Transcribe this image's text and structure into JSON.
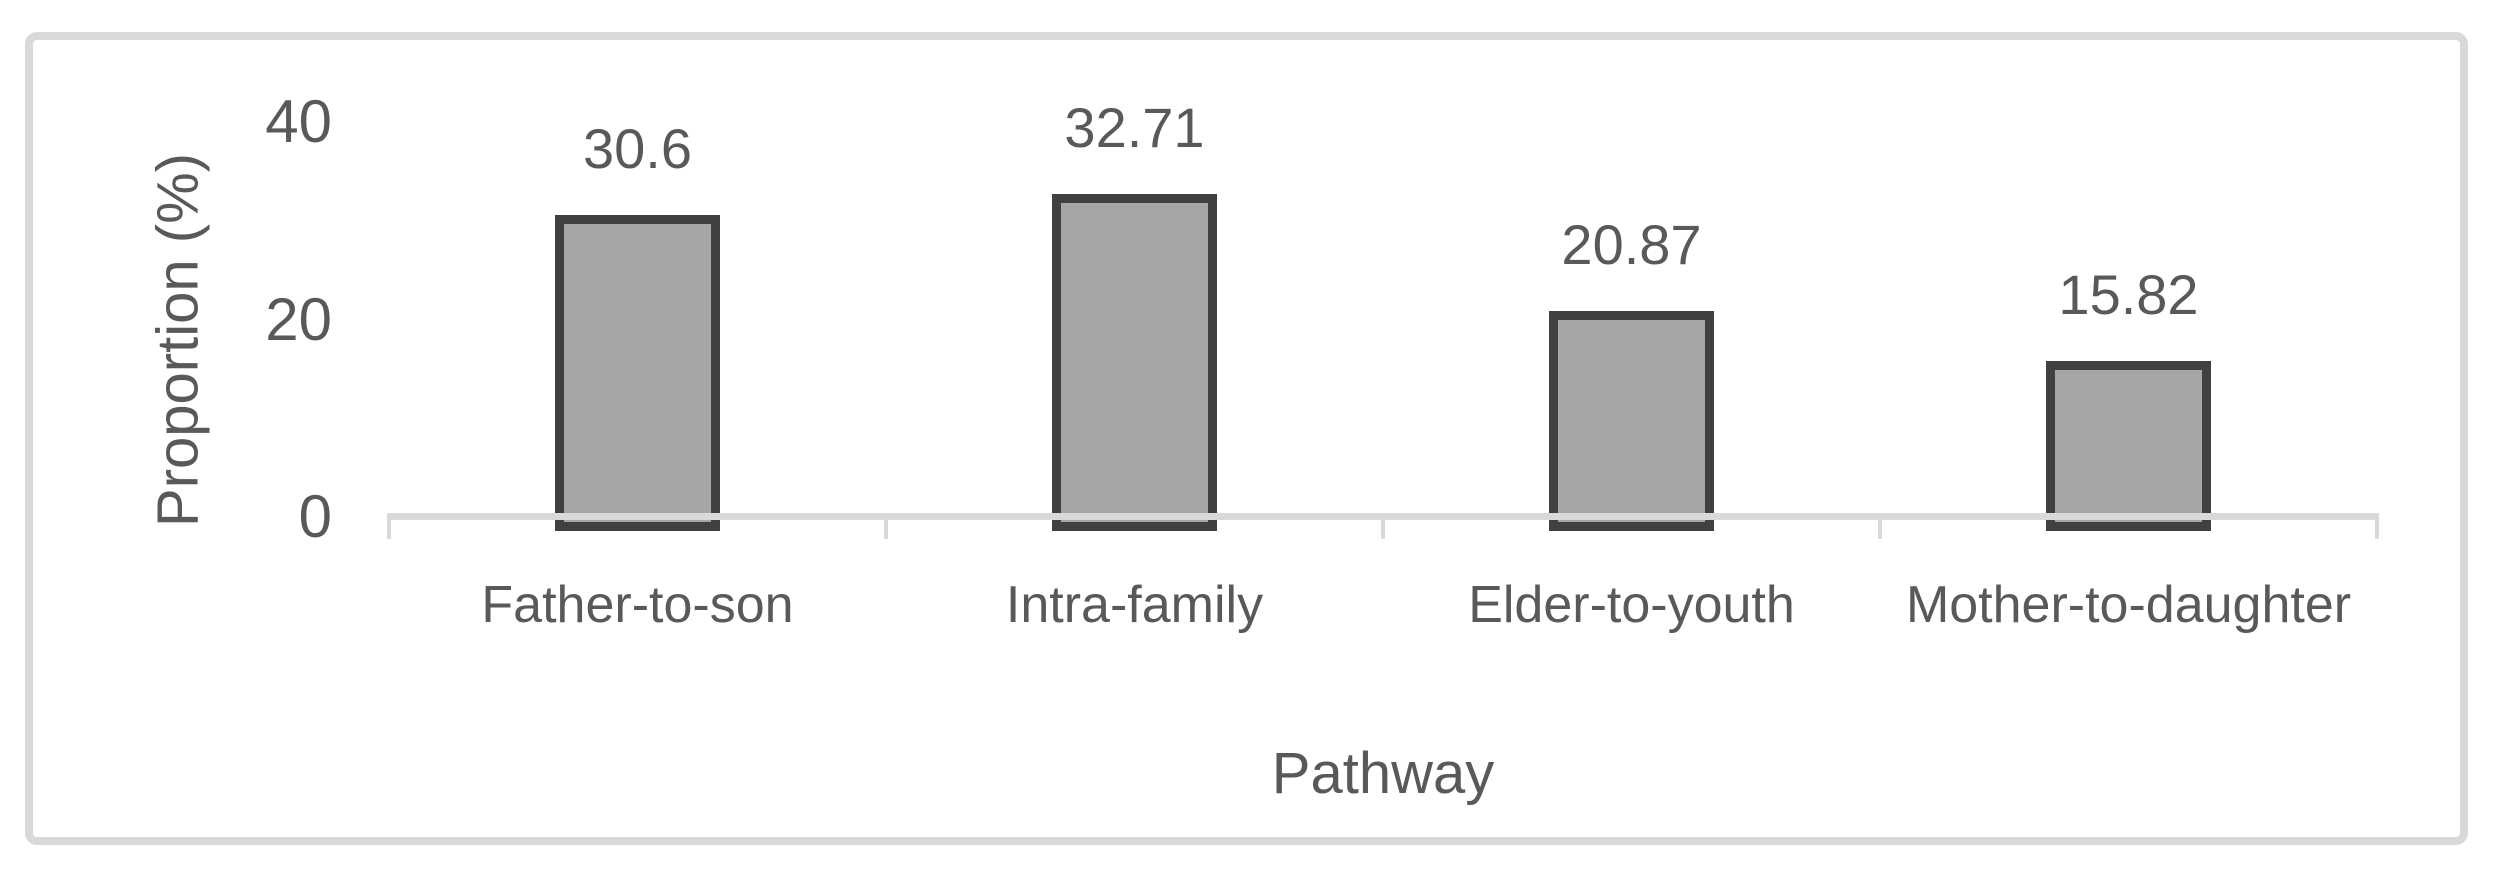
{
  "figure": {
    "background_color": "#ffffff",
    "frame_border_color": "#d9d9d9"
  },
  "chart_data": {
    "type": "bar",
    "title": "",
    "categories": [
      "Father-to-son",
      "Intra-family",
      "Elder-to-youth",
      "Mother-to-daughter"
    ],
    "values": [
      30.6,
      32.71,
      20.87,
      15.82
    ],
    "data_labels": [
      "30.6",
      "32.71",
      "20.87",
      "15.82"
    ],
    "series": [
      {
        "name": "Proportion",
        "values": [
          30.6,
          32.71,
          20.87,
          15.82
        ]
      }
    ],
    "xlabel": "Pathway",
    "ylabel": "Proportion (%)",
    "ylim": [
      0,
      40
    ],
    "yticks": [
      40,
      20,
      0
    ],
    "ytick_labels": [
      "40",
      "20",
      "0"
    ],
    "grid": "off",
    "legend": "none",
    "bar_fill_color": "#a6a6a6",
    "bar_border_color": "#404040",
    "axis_line_color": "#d9d9d9",
    "text_color": "#595959"
  }
}
